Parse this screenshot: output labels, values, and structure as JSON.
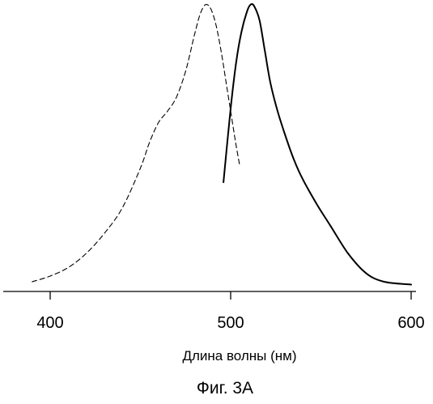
{
  "chart_data": {
    "type": "line",
    "xlabel": "Длина волны (нм)",
    "caption": "Фиг. 3А",
    "xlim": [
      383,
      600
    ],
    "ylim": [
      0,
      1
    ],
    "x_ticks": [
      400,
      500,
      600
    ],
    "x_tick_labels": [
      "400",
      "500",
      "600"
    ],
    "y_axis_shown": false,
    "grid": false,
    "legend": "none",
    "line_color": "#000000",
    "series": [
      {
        "line_style": "dashed",
        "x": [
          390,
          400,
          410,
          420,
          430,
          440,
          450,
          455,
          460,
          465,
          470,
          475,
          480,
          483,
          486,
          489,
          492,
          495,
          498,
          501,
          503,
          505
        ],
        "y": [
          0.02,
          0.04,
          0.07,
          0.12,
          0.19,
          0.28,
          0.42,
          0.51,
          0.58,
          0.62,
          0.67,
          0.76,
          0.89,
          0.96,
          0.995,
          0.98,
          0.92,
          0.82,
          0.7,
          0.58,
          0.5,
          0.43
        ]
      },
      {
        "line_style": "solid",
        "x": [
          496,
          500,
          503,
          506,
          509,
          511,
          513,
          516,
          519,
          522,
          526,
          530,
          535,
          540,
          548,
          555,
          565,
          575,
          585,
          600
        ],
        "y": [
          0.37,
          0.63,
          0.79,
          0.9,
          0.97,
          0.995,
          0.99,
          0.94,
          0.83,
          0.72,
          0.62,
          0.54,
          0.45,
          0.38,
          0.29,
          0.22,
          0.12,
          0.05,
          0.02,
          0.01
        ]
      }
    ]
  }
}
